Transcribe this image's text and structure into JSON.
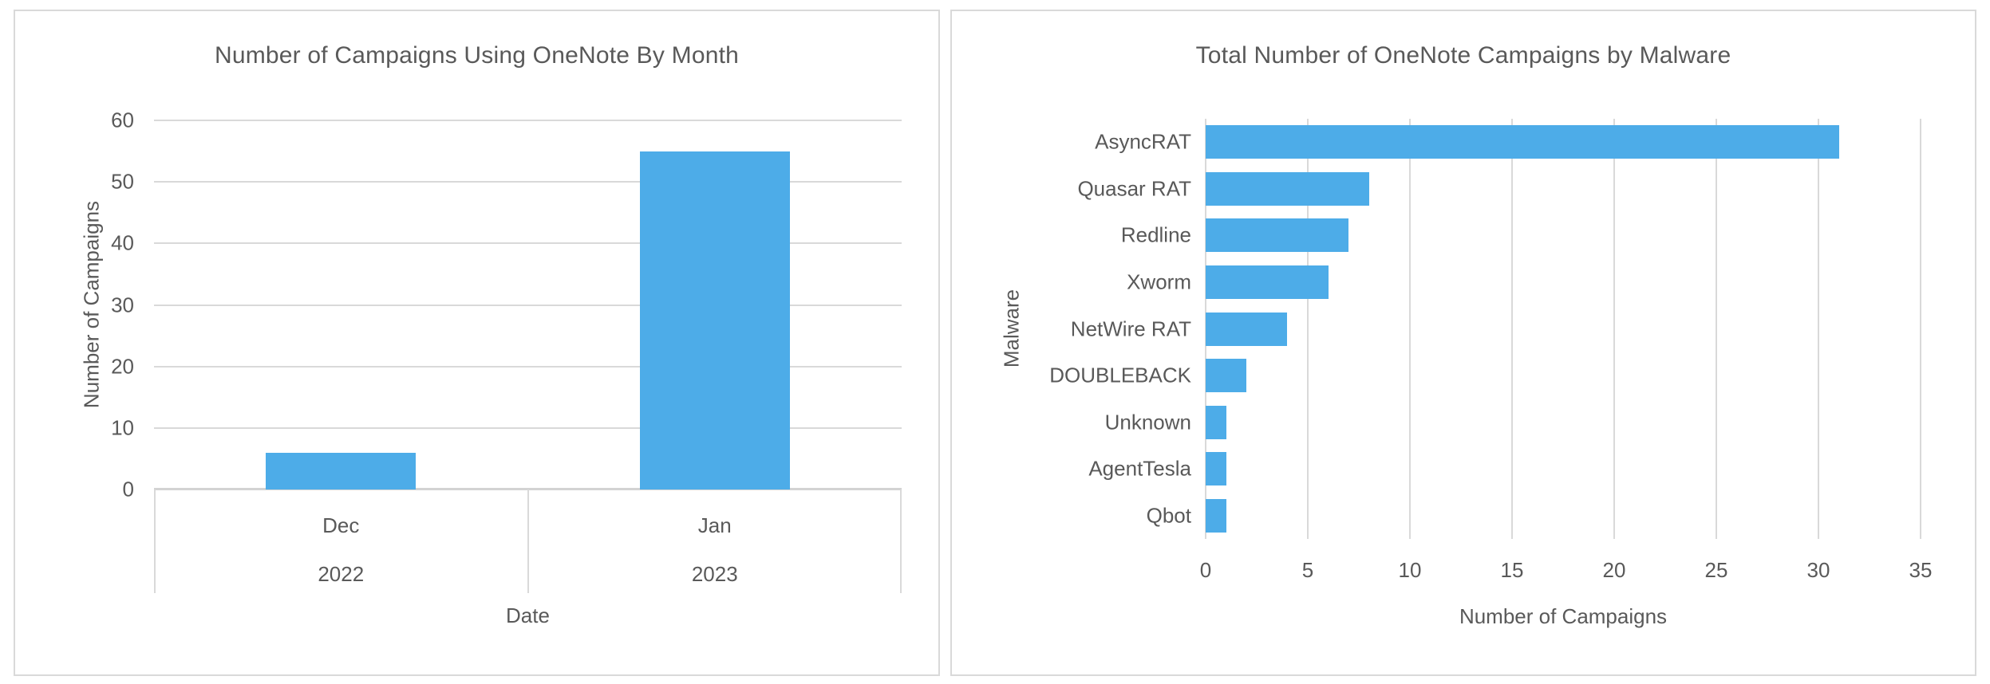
{
  "colors": {
    "bar": "#4DACE8",
    "gridline": "#D9D9D9",
    "axis_line": "#D3D3D3",
    "text": "#595959",
    "panel_border": "#D9D9D9",
    "background": "#FFFFFF"
  },
  "chart_data": [
    {
      "type": "bar",
      "title": "Number of Campaigns Using OneNote By Month",
      "xlabel": "Date",
      "ylabel": "Number of Campaigns",
      "categories": [
        "Dec",
        "Jan"
      ],
      "category_years": [
        "2022",
        "2023"
      ],
      "values": [
        6,
        55
      ],
      "y_ticks": [
        0,
        10,
        20,
        30,
        40,
        50,
        60
      ],
      "ylim": [
        0,
        60
      ],
      "grid": true,
      "legend": "none",
      "bar_color": "#4DACE8"
    },
    {
      "type": "bar-horizontal",
      "title": "Total Number of OneNote Campaigns by Malware",
      "xlabel": "Number of Campaigns",
      "ylabel": "Malware",
      "categories": [
        "AsyncRAT",
        "Quasar RAT",
        "Redline",
        "Xworm",
        "NetWire RAT",
        "DOUBLEBACK",
        "Unknown",
        "AgentTesla",
        "Qbot"
      ],
      "values": [
        31,
        8,
        7,
        6,
        4,
        2,
        1,
        1,
        1
      ],
      "x_ticks": [
        0,
        5,
        10,
        15,
        20,
        25,
        30,
        35
      ],
      "xlim": [
        0,
        35
      ],
      "grid": true,
      "legend": "none",
      "bar_color": "#4DACE8"
    }
  ]
}
